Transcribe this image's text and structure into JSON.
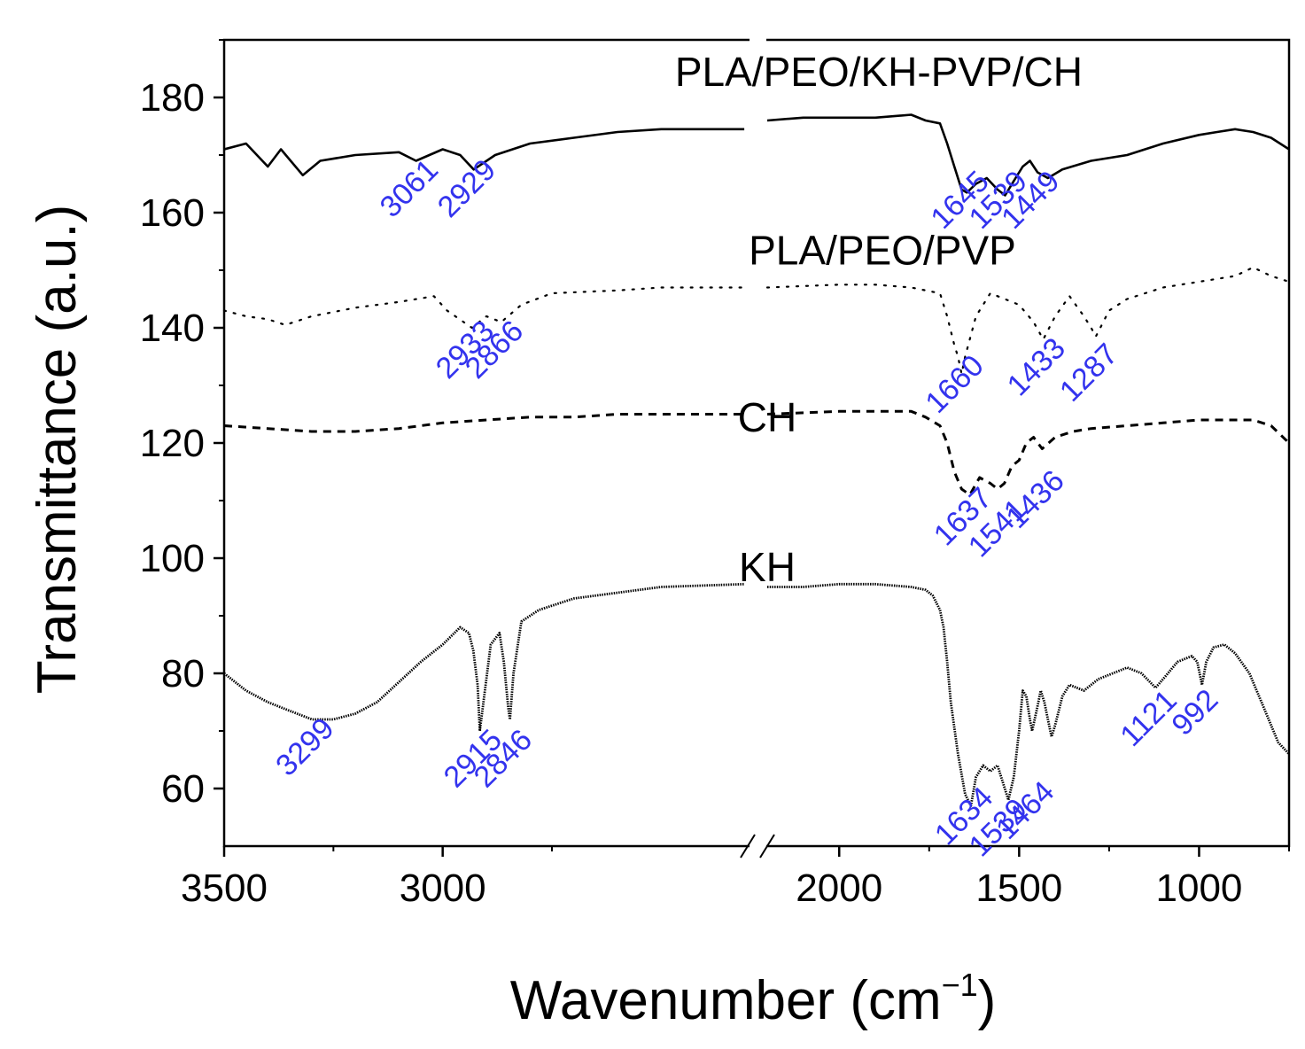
{
  "chart_data": {
    "type": "line",
    "xlabel": "Wavenumber (cm",
    "xlabel_sup": "−1",
    "xlabel_close": ")",
    "ylabel": "Transmittance (a.u.)",
    "xlim": [
      3500,
      750
    ],
    "x_break": [
      2300,
      2200
    ],
    "ylim": [
      50,
      190
    ],
    "xticks": [
      {
        "value": 3500,
        "label": "3500"
      },
      {
        "value": 3000,
        "label": "3000"
      },
      {
        "value": 2000,
        "label": "2000"
      },
      {
        "value": 1500,
        "label": "1500"
      },
      {
        "value": 1000,
        "label": "1000"
      }
    ],
    "yticks": [
      {
        "value": 60,
        "label": "60"
      },
      {
        "value": 80,
        "label": "80"
      },
      {
        "value": 100,
        "label": "100"
      },
      {
        "value": 120,
        "label": "120"
      },
      {
        "value": 140,
        "label": "140"
      },
      {
        "value": 160,
        "label": "160"
      },
      {
        "value": 180,
        "label": "180"
      }
    ],
    "series": [
      {
        "name": "PLA/PEO/KH-PVP/CH",
        "label_pos": [
          1890,
          182
        ],
        "style": "solid",
        "points": [
          [
            3500,
            171
          ],
          [
            3450,
            172
          ],
          [
            3400,
            168
          ],
          [
            3370,
            171
          ],
          [
            3320,
            166.5
          ],
          [
            3280,
            169
          ],
          [
            3200,
            170
          ],
          [
            3100,
            170.5
          ],
          [
            3061,
            169
          ],
          [
            3000,
            171
          ],
          [
            2960,
            170
          ],
          [
            2929,
            167.5
          ],
          [
            2880,
            170
          ],
          [
            2800,
            172
          ],
          [
            2700,
            173
          ],
          [
            2600,
            174
          ],
          [
            2500,
            174.5
          ],
          [
            2310,
            174.5
          ],
          [
            2200,
            176
          ],
          [
            2100,
            176.5
          ],
          [
            2000,
            176.5
          ],
          [
            1900,
            176.5
          ],
          [
            1800,
            177
          ],
          [
            1760,
            176
          ],
          [
            1720,
            175.5
          ],
          [
            1700,
            172
          ],
          [
            1680,
            168
          ],
          [
            1660,
            164
          ],
          [
            1645,
            163.5
          ],
          [
            1620,
            165
          ],
          [
            1590,
            166
          ],
          [
            1560,
            164
          ],
          [
            1539,
            163
          ],
          [
            1510,
            166
          ],
          [
            1490,
            168
          ],
          [
            1470,
            169
          ],
          [
            1449,
            167
          ],
          [
            1420,
            166
          ],
          [
            1380,
            167.5
          ],
          [
            1300,
            169
          ],
          [
            1200,
            170
          ],
          [
            1100,
            172
          ],
          [
            1000,
            173.5
          ],
          [
            950,
            174
          ],
          [
            900,
            174.5
          ],
          [
            850,
            174
          ],
          [
            800,
            173
          ],
          [
            750,
            171
          ]
        ]
      },
      {
        "name": "PLA/PEO/PVP",
        "label_pos": [
          1880,
          151
        ],
        "style": "dotted",
        "points": [
          [
            3500,
            143
          ],
          [
            3450,
            142
          ],
          [
            3400,
            141.5
          ],
          [
            3360,
            140.5
          ],
          [
            3300,
            142
          ],
          [
            3200,
            143.5
          ],
          [
            3100,
            144.5
          ],
          [
            3020,
            145.5
          ],
          [
            2990,
            143
          ],
          [
            2933,
            140
          ],
          [
            2900,
            142
          ],
          [
            2866,
            141
          ],
          [
            2820,
            144
          ],
          [
            2750,
            146
          ],
          [
            2600,
            146.5
          ],
          [
            2500,
            147
          ],
          [
            2310,
            147
          ],
          [
            2200,
            147
          ],
          [
            2000,
            147.5
          ],
          [
            1900,
            147.5
          ],
          [
            1800,
            147
          ],
          [
            1720,
            146
          ],
          [
            1700,
            142
          ],
          [
            1680,
            137
          ],
          [
            1670,
            135
          ],
          [
            1660,
            132
          ],
          [
            1650,
            135
          ],
          [
            1620,
            142
          ],
          [
            1580,
            146
          ],
          [
            1540,
            145
          ],
          [
            1500,
            144
          ],
          [
            1460,
            141
          ],
          [
            1433,
            138
          ],
          [
            1400,
            142
          ],
          [
            1360,
            145.5
          ],
          [
            1320,
            142
          ],
          [
            1300,
            140
          ],
          [
            1287,
            138.5
          ],
          [
            1250,
            143
          ],
          [
            1200,
            145
          ],
          [
            1100,
            147
          ],
          [
            1000,
            148
          ],
          [
            900,
            149
          ],
          [
            850,
            150.5
          ],
          [
            800,
            149
          ],
          [
            750,
            148
          ]
        ]
      },
      {
        "name": "CH",
        "label_pos": [
          2200,
          122
        ],
        "style": "dashed",
        "points": [
          [
            3500,
            123
          ],
          [
            3400,
            122.5
          ],
          [
            3300,
            122
          ],
          [
            3200,
            122
          ],
          [
            3100,
            122.5
          ],
          [
            3000,
            123.5
          ],
          [
            2900,
            124
          ],
          [
            2800,
            124.5
          ],
          [
            2700,
            124.5
          ],
          [
            2600,
            125
          ],
          [
            2500,
            125
          ],
          [
            2310,
            125
          ],
          [
            2200,
            125
          ],
          [
            2000,
            125.5
          ],
          [
            1900,
            125.5
          ],
          [
            1800,
            125.5
          ],
          [
            1760,
            124.5
          ],
          [
            1720,
            123
          ],
          [
            1700,
            120
          ],
          [
            1680,
            115
          ],
          [
            1660,
            112
          ],
          [
            1637,
            111
          ],
          [
            1610,
            114
          ],
          [
            1580,
            113
          ],
          [
            1560,
            112
          ],
          [
            1541,
            113
          ],
          [
            1520,
            116
          ],
          [
            1500,
            117
          ],
          [
            1480,
            120
          ],
          [
            1460,
            121
          ],
          [
            1436,
            119
          ],
          [
            1400,
            121
          ],
          [
            1350,
            122
          ],
          [
            1300,
            122.5
          ],
          [
            1200,
            123
          ],
          [
            1100,
            123.5
          ],
          [
            1000,
            124
          ],
          [
            900,
            124
          ],
          [
            850,
            124
          ],
          [
            800,
            123
          ],
          [
            750,
            120
          ]
        ]
      },
      {
        "name": "KH",
        "label_pos": [
          2200,
          96
        ],
        "style": "dotfine",
        "points": [
          [
            3500,
            80
          ],
          [
            3450,
            77
          ],
          [
            3400,
            75
          ],
          [
            3350,
            73.5
          ],
          [
            3299,
            72
          ],
          [
            3250,
            72
          ],
          [
            3200,
            73
          ],
          [
            3150,
            75
          ],
          [
            3100,
            78.5
          ],
          [
            3050,
            82
          ],
          [
            3000,
            85
          ],
          [
            2960,
            88
          ],
          [
            2940,
            87
          ],
          [
            2930,
            84
          ],
          [
            2920,
            78
          ],
          [
            2915,
            70
          ],
          [
            2905,
            76
          ],
          [
            2890,
            85
          ],
          [
            2870,
            87
          ],
          [
            2860,
            82
          ],
          [
            2850,
            74
          ],
          [
            2846,
            72
          ],
          [
            2838,
            80
          ],
          [
            2820,
            89
          ],
          [
            2780,
            91
          ],
          [
            2700,
            93
          ],
          [
            2600,
            94
          ],
          [
            2500,
            95
          ],
          [
            2310,
            95.5
          ],
          [
            2200,
            95
          ],
          [
            2100,
            95
          ],
          [
            2000,
            95.5
          ],
          [
            1900,
            95.5
          ],
          [
            1800,
            95
          ],
          [
            1760,
            94.5
          ],
          [
            1740,
            93.5
          ],
          [
            1720,
            91
          ],
          [
            1710,
            88
          ],
          [
            1700,
            82
          ],
          [
            1690,
            75
          ],
          [
            1670,
            66
          ],
          [
            1650,
            59
          ],
          [
            1634,
            57
          ],
          [
            1620,
            62
          ],
          [
            1600,
            64
          ],
          [
            1580,
            63
          ],
          [
            1560,
            64
          ],
          [
            1545,
            61
          ],
          [
            1530,
            58
          ],
          [
            1515,
            62
          ],
          [
            1500,
            70
          ],
          [
            1490,
            77
          ],
          [
            1480,
            76
          ],
          [
            1470,
            72
          ],
          [
            1464,
            70
          ],
          [
            1450,
            74
          ],
          [
            1440,
            77
          ],
          [
            1430,
            75
          ],
          [
            1420,
            72
          ],
          [
            1410,
            69
          ],
          [
            1400,
            71
          ],
          [
            1380,
            76
          ],
          [
            1360,
            78
          ],
          [
            1320,
            77
          ],
          [
            1280,
            79
          ],
          [
            1240,
            80
          ],
          [
            1200,
            81
          ],
          [
            1160,
            80
          ],
          [
            1121,
            77.5
          ],
          [
            1100,
            79
          ],
          [
            1060,
            82
          ],
          [
            1020,
            83
          ],
          [
            1005,
            82
          ],
          [
            992,
            78
          ],
          [
            980,
            82
          ],
          [
            960,
            84.5
          ],
          [
            930,
            85
          ],
          [
            900,
            83.5
          ],
          [
            860,
            80
          ],
          [
            820,
            74
          ],
          [
            780,
            68
          ],
          [
            750,
            66
          ]
        ]
      }
    ],
    "peak_labels": [
      {
        "text": "3061",
        "x": 3061,
        "y": 163,
        "series": "PLA/PEO/KH-PVP/CH"
      },
      {
        "text": "2929",
        "x": 2929,
        "y": 163,
        "series": "PLA/PEO/KH-PVP/CH"
      },
      {
        "text": "1645",
        "x": 1645,
        "y": 161,
        "series": "PLA/PEO/KH-PVP/CH"
      },
      {
        "text": "1539",
        "x": 1539,
        "y": 161,
        "series": "PLA/PEO/KH-PVP/CH"
      },
      {
        "text": "1449",
        "x": 1449,
        "y": 161,
        "series": "PLA/PEO/KH-PVP/CH"
      },
      {
        "text": "2933",
        "x": 2933,
        "y": 135,
        "series": "PLA/PEO/PVP"
      },
      {
        "text": "2866",
        "x": 2866,
        "y": 135,
        "series": "PLA/PEO/PVP"
      },
      {
        "text": "1660",
        "x": 1660,
        "y": 129,
        "series": "PLA/PEO/PVP"
      },
      {
        "text": "1433",
        "x": 1433,
        "y": 132,
        "series": "PLA/PEO/PVP"
      },
      {
        "text": "1287",
        "x": 1287,
        "y": 131,
        "series": "PLA/PEO/PVP"
      },
      {
        "text": "1637",
        "x": 1637,
        "y": 106,
        "series": "CH"
      },
      {
        "text": "1541",
        "x": 1541,
        "y": 104,
        "series": "CH"
      },
      {
        "text": "1436",
        "x": 1436,
        "y": 109,
        "series": "CH"
      },
      {
        "text": "3299",
        "x": 3299,
        "y": 66,
        "series": "KH"
      },
      {
        "text": "2915",
        "x": 2915,
        "y": 64,
        "series": "KH"
      },
      {
        "text": "2846",
        "x": 2846,
        "y": 64,
        "series": "KH"
      },
      {
        "text": "1634",
        "x": 1634,
        "y": 54,
        "series": "KH"
      },
      {
        "text": "1539",
        "x": 1539,
        "y": 52,
        "series": "KH"
      },
      {
        "text": "1464",
        "x": 1464,
        "y": 55,
        "series": "KH"
      },
      {
        "text": "1121",
        "x": 1121,
        "y": 71,
        "series": "KH"
      },
      {
        "text": "992",
        "x": 992,
        "y": 72,
        "series": "KH"
      }
    ],
    "colors": {
      "line": "#000000",
      "peak_label": "#3333ee"
    }
  }
}
